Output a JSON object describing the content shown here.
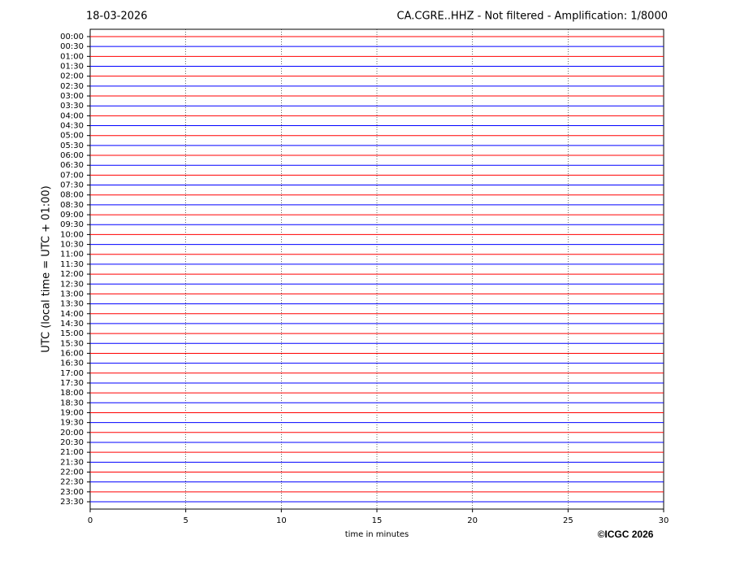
{
  "chart_data": {
    "type": "helicorder",
    "title_left": "18-03-2026",
    "title": "CA.CGRE..HHZ - Not filtered - Amplification: 1/8000",
    "x_label": "time in minutes",
    "y_label": "UTC (local time = UTC + 01:00)",
    "credit": "©ICGC 2026",
    "xlim": [
      0,
      30
    ],
    "xticks": [
      0,
      5,
      10,
      15,
      20,
      25,
      30
    ],
    "grid": true,
    "colors": [
      "#ff0000",
      "#0000ff"
    ],
    "rows": [
      "00:00",
      "00:30",
      "01:00",
      "01:30",
      "02:00",
      "02:30",
      "03:00",
      "03:30",
      "04:00",
      "04:30",
      "05:00",
      "05:30",
      "06:00",
      "06:30",
      "07:00",
      "07:30",
      "08:00",
      "08:30",
      "09:00",
      "09:30",
      "10:00",
      "10:30",
      "11:00",
      "11:30",
      "12:00",
      "12:30",
      "13:00",
      "13:30",
      "14:00",
      "14:30",
      "15:00",
      "15:30",
      "16:00",
      "16:30",
      "17:00",
      "17:30",
      "18:00",
      "18:30",
      "19:00",
      "19:30",
      "20:00",
      "20:30",
      "21:00",
      "21:30",
      "22:00",
      "22:30",
      "23:00",
      "23:30"
    ]
  }
}
